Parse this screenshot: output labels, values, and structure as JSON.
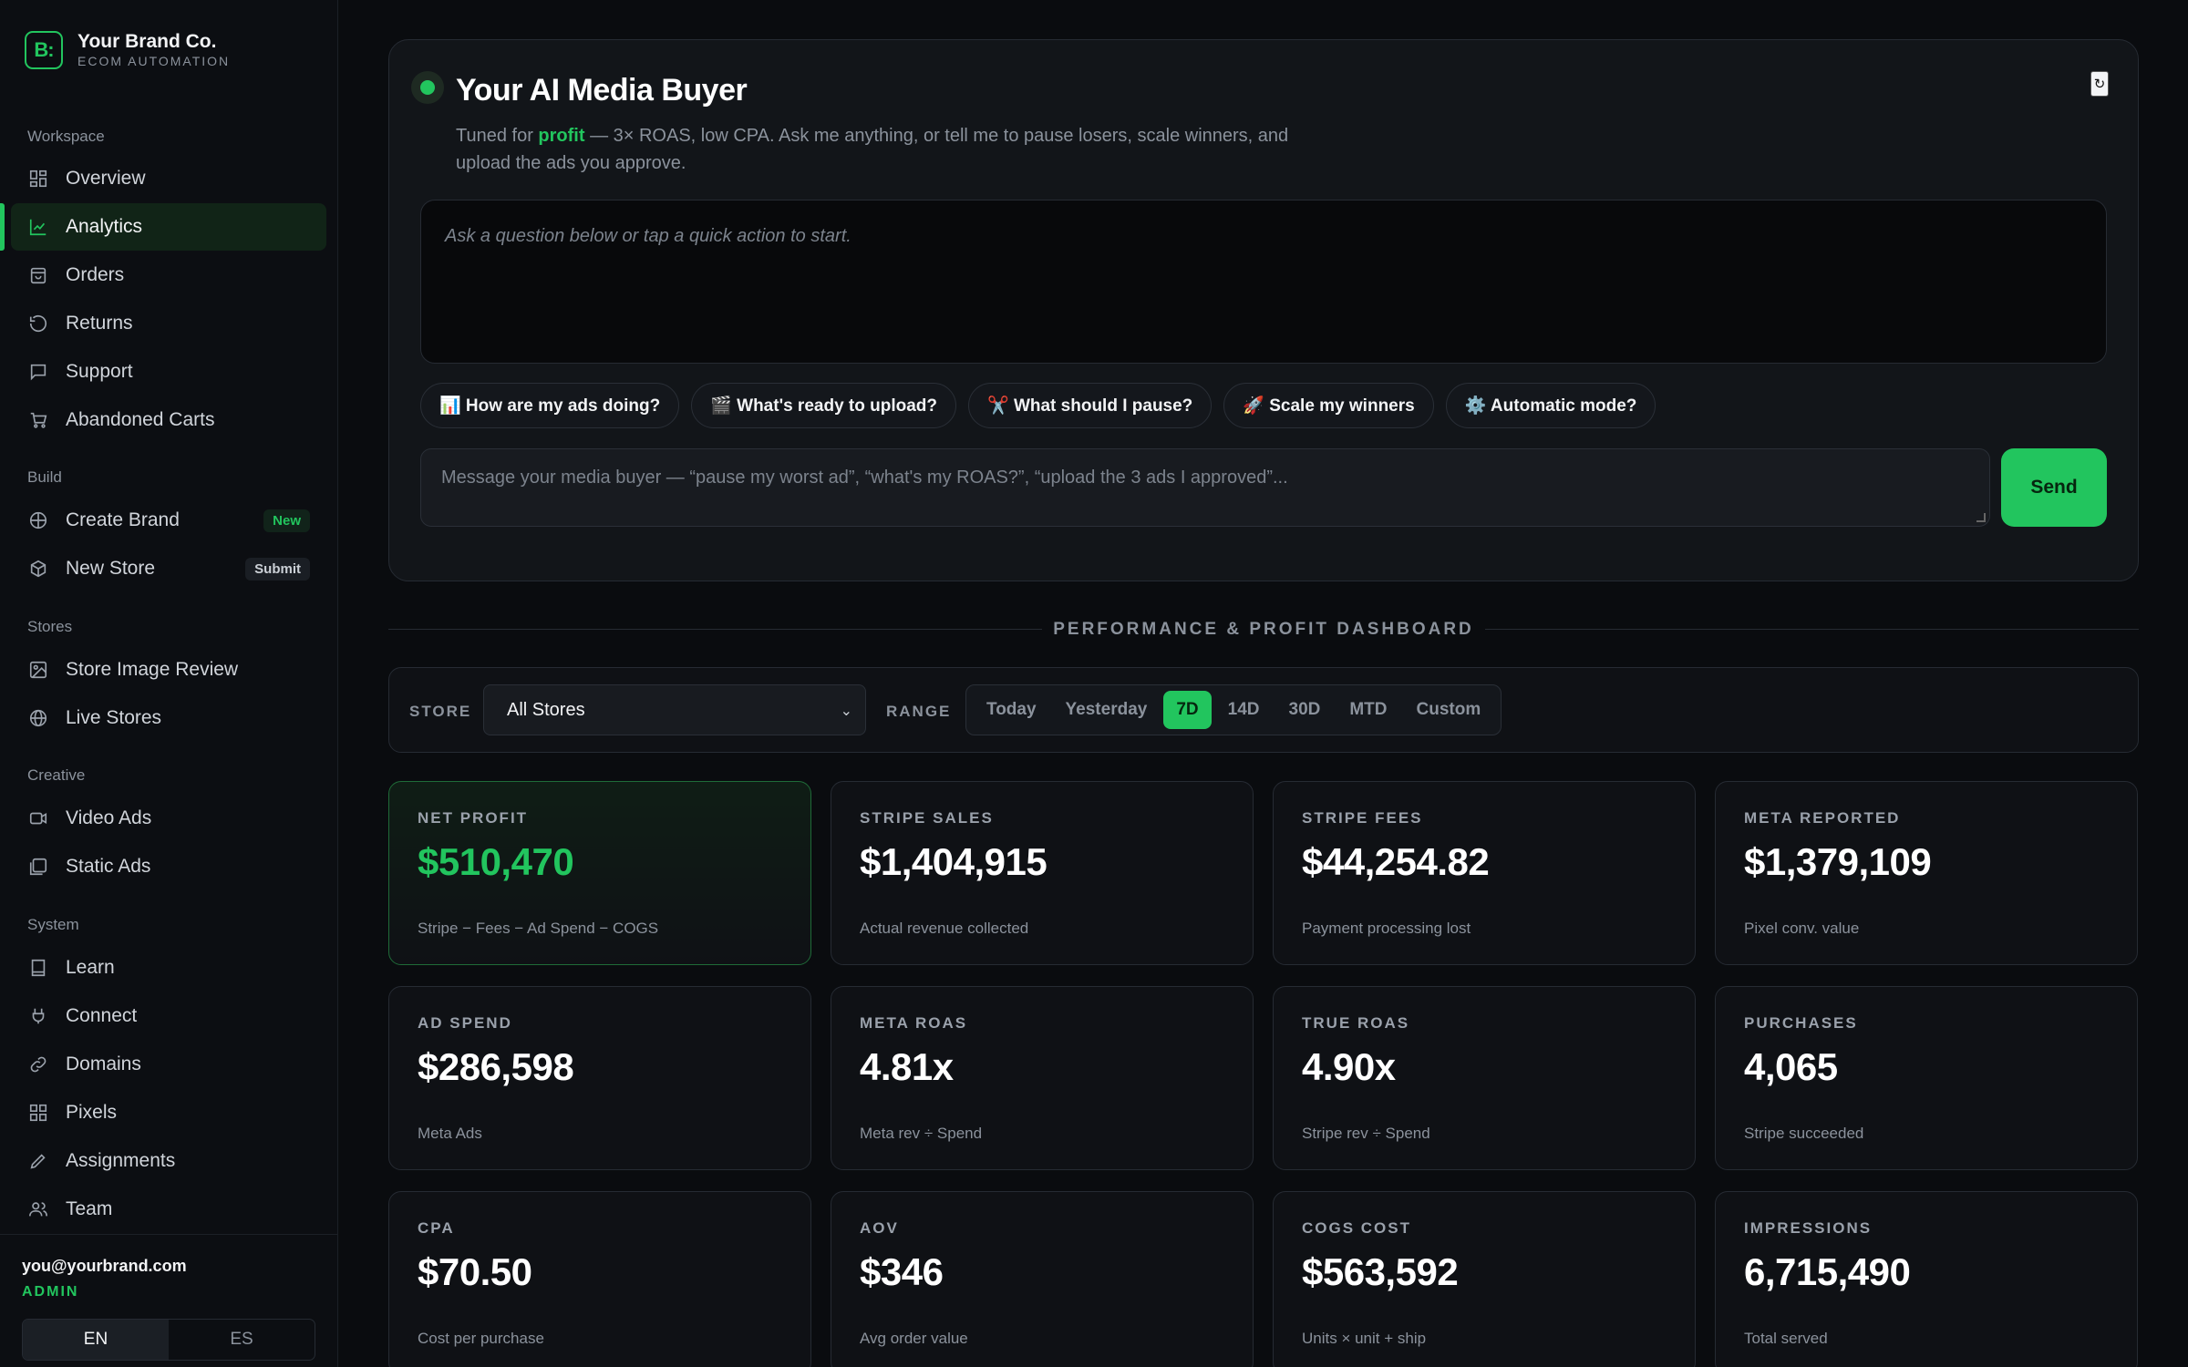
{
  "brand": {
    "name": "Your Brand Co.",
    "subtitle": "ECOM AUTOMATION",
    "logo_text": "B:"
  },
  "sidebar": {
    "sections": {
      "workspace": "Workspace",
      "build": "Build",
      "stores": "Stores",
      "creative": "Creative",
      "system": "System"
    },
    "items": [
      {
        "label": "Overview",
        "icon": "grid-icon"
      },
      {
        "label": "Analytics",
        "icon": "chart-line-icon",
        "active": true
      },
      {
        "label": "Orders",
        "icon": "bag-icon"
      },
      {
        "label": "Returns",
        "icon": "undo-icon"
      },
      {
        "label": "Support",
        "icon": "message-icon"
      },
      {
        "label": "Abandoned Carts",
        "icon": "cart-icon"
      },
      {
        "label": "Create Brand",
        "icon": "globe-icon",
        "badge": "New"
      },
      {
        "label": "New Store",
        "icon": "box-icon",
        "badge": "Submit"
      },
      {
        "label": "Store Image Review",
        "icon": "image-icon"
      },
      {
        "label": "Live Stores",
        "icon": "globe-icon"
      },
      {
        "label": "Video Ads",
        "icon": "video-icon"
      },
      {
        "label": "Static Ads",
        "icon": "images-icon"
      },
      {
        "label": "Learn",
        "icon": "book-icon"
      },
      {
        "label": "Connect",
        "icon": "plug-icon"
      },
      {
        "label": "Domains",
        "icon": "link-icon"
      },
      {
        "label": "Pixels",
        "icon": "grid-icon"
      },
      {
        "label": "Assignments",
        "icon": "pencil-icon"
      },
      {
        "label": "Team",
        "icon": "users-icon"
      }
    ],
    "footer": {
      "email": "you@yourbrand.com",
      "role": "ADMIN",
      "languages": [
        "EN",
        "ES"
      ],
      "active_language": "EN"
    }
  },
  "ai_buyer": {
    "title": "Your AI Media Buyer",
    "subtitle_pre": "Tuned for ",
    "subtitle_highlight": "profit",
    "subtitle_post": " — 3× ROAS, low CPA. Ask me anything, or tell me to pause losers, scale winners, and upload the ads you approve.",
    "refresh_icon": "↻",
    "chat_placeholder": "Ask a question below or tap a quick action to start.",
    "quick_actions": [
      "📊 How are my ads doing?",
      "🎬 What's ready to upload?",
      "✂️ What should I pause?",
      "🚀 Scale my winners",
      "⚙️ Automatic mode?"
    ],
    "message_placeholder": "Message your media buyer — “pause my worst ad”, “what's my ROAS?”, “upload the 3 ads I approved”...",
    "send_label": "Send"
  },
  "dashboard": {
    "section_title": "PERFORMANCE & PROFIT DASHBOARD",
    "filters": {
      "store_label": "STORE",
      "store_value": "All Stores",
      "range_label": "RANGE",
      "ranges": [
        "Today",
        "Yesterday",
        "7D",
        "14D",
        "30D",
        "MTD",
        "Custom"
      ],
      "active_range": "7D"
    },
    "kpis": [
      {
        "label": "NET PROFIT",
        "value": "$510,470",
        "note": "Stripe − Fees − Ad Spend − COGS",
        "highlight": true
      },
      {
        "label": "STRIPE SALES",
        "value": "$1,404,915",
        "note": "Actual revenue collected"
      },
      {
        "label": "STRIPE FEES",
        "value": "$44,254.82",
        "note": "Payment processing lost"
      },
      {
        "label": "META REPORTED",
        "value": "$1,379,109",
        "note": "Pixel conv. value"
      },
      {
        "label": "AD SPEND",
        "value": "$286,598",
        "note": "Meta Ads"
      },
      {
        "label": "META ROAS",
        "value": "4.81x",
        "note": "Meta rev ÷ Spend"
      },
      {
        "label": "TRUE ROAS",
        "value": "4.90x",
        "note": "Stripe rev ÷ Spend"
      },
      {
        "label": "PURCHASES",
        "value": "4,065",
        "note": "Stripe succeeded"
      },
      {
        "label": "CPA",
        "value": "$70.50",
        "note": "Cost per purchase"
      },
      {
        "label": "AOV",
        "value": "$346",
        "note": "Avg order value"
      },
      {
        "label": "COGS COST",
        "value": "$563,592",
        "note": "Units × unit + ship"
      },
      {
        "label": "IMPRESSIONS",
        "value": "6,715,490",
        "note": "Total served"
      }
    ]
  },
  "colors": {
    "accent": "#22c55e",
    "background": "#0a0c0f",
    "panel": "#121519"
  }
}
